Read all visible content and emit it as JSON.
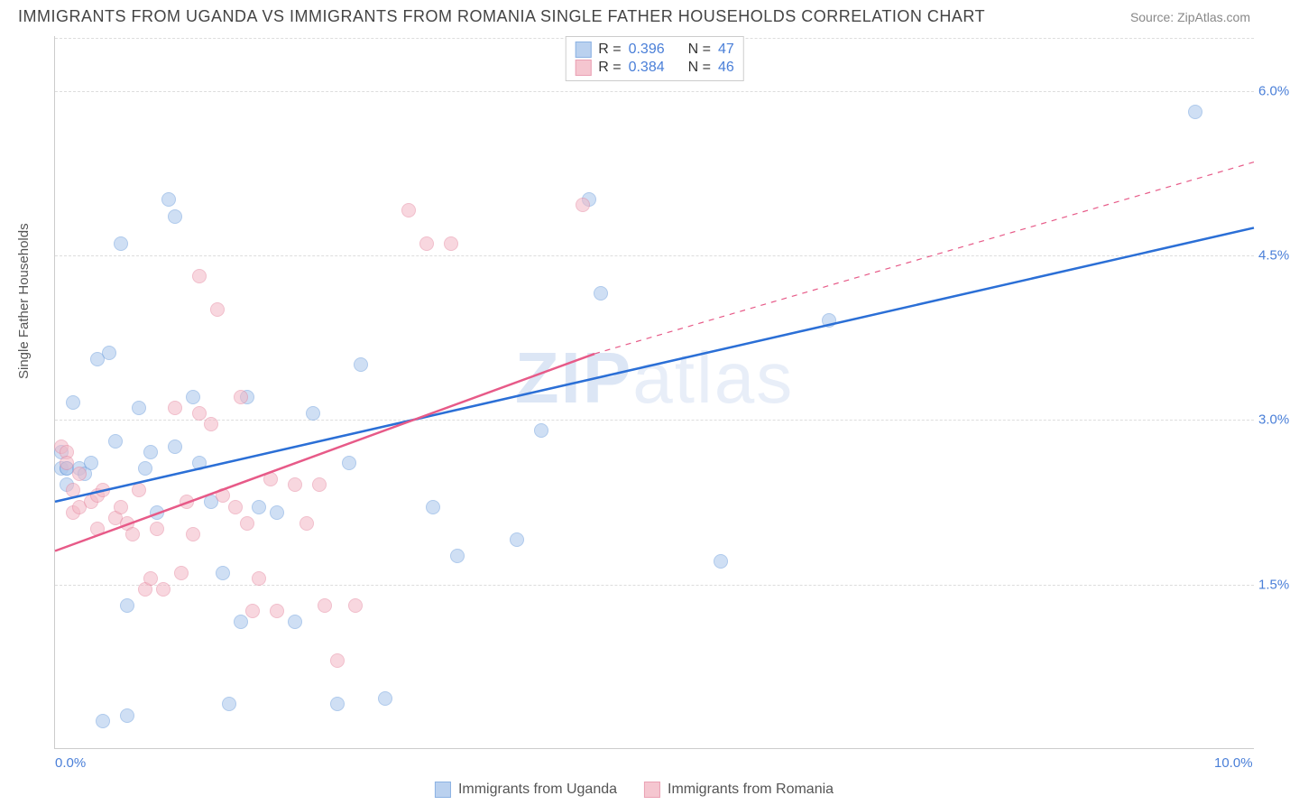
{
  "header": {
    "title": "IMMIGRANTS FROM UGANDA VS IMMIGRANTS FROM ROMANIA SINGLE FATHER HOUSEHOLDS CORRELATION CHART",
    "source": "Source: ZipAtlas.com"
  },
  "watermark": "ZIPatlas",
  "chart": {
    "type": "scatter",
    "y_axis_label": "Single Father Households",
    "xlim": [
      0.0,
      10.0
    ],
    "ylim": [
      0.0,
      6.5
    ],
    "x_ticks": [
      {
        "value": 0.0,
        "label": "0.0%"
      },
      {
        "value": 10.0,
        "label": "10.0%"
      }
    ],
    "y_ticks": [
      {
        "value": 1.5,
        "label": "1.5%"
      },
      {
        "value": 3.0,
        "label": "3.0%"
      },
      {
        "value": 4.5,
        "label": "4.5%"
      },
      {
        "value": 6.0,
        "label": "6.0%"
      }
    ],
    "background_color": "#ffffff",
    "grid_color": "#dddddd",
    "point_radius": 8,
    "series": [
      {
        "name": "Immigrants from Uganda",
        "fill_color": "#a9c6ec",
        "fill_opacity": 0.55,
        "stroke_color": "#6f9fdd",
        "trend_color": "#2b6fd6",
        "trend_width": 2.5,
        "R": "0.396",
        "N": "47",
        "trend": {
          "x1": 0.0,
          "y1": 2.25,
          "x2": 10.0,
          "y2": 4.75,
          "dashed": false
        },
        "points": [
          [
            0.05,
            2.7
          ],
          [
            0.05,
            2.55
          ],
          [
            0.1,
            2.55
          ],
          [
            0.1,
            2.4
          ],
          [
            0.1,
            2.55
          ],
          [
            0.15,
            3.15
          ],
          [
            0.2,
            2.55
          ],
          [
            0.25,
            2.5
          ],
          [
            0.3,
            2.6
          ],
          [
            0.35,
            3.55
          ],
          [
            0.4,
            0.25
          ],
          [
            0.45,
            3.6
          ],
          [
            0.5,
            2.8
          ],
          [
            0.55,
            4.6
          ],
          [
            0.6,
            1.3
          ],
          [
            0.6,
            0.3
          ],
          [
            0.7,
            3.1
          ],
          [
            0.75,
            2.55
          ],
          [
            0.8,
            2.7
          ],
          [
            0.85,
            2.15
          ],
          [
            0.95,
            5.0
          ],
          [
            1.0,
            4.85
          ],
          [
            1.0,
            2.75
          ],
          [
            1.15,
            3.2
          ],
          [
            1.2,
            2.6
          ],
          [
            1.3,
            2.25
          ],
          [
            1.4,
            1.6
          ],
          [
            1.45,
            0.4
          ],
          [
            1.55,
            1.15
          ],
          [
            1.6,
            3.2
          ],
          [
            1.7,
            2.2
          ],
          [
            1.85,
            2.15
          ],
          [
            2.0,
            1.15
          ],
          [
            2.15,
            3.05
          ],
          [
            2.35,
            0.4
          ],
          [
            2.45,
            2.6
          ],
          [
            2.55,
            3.5
          ],
          [
            2.75,
            0.45
          ],
          [
            3.15,
            2.2
          ],
          [
            3.35,
            1.75
          ],
          [
            3.85,
            1.9
          ],
          [
            4.05,
            2.9
          ],
          [
            4.45,
            5.0
          ],
          [
            4.55,
            4.15
          ],
          [
            5.55,
            1.7
          ],
          [
            6.45,
            3.9
          ],
          [
            9.5,
            5.8
          ]
        ]
      },
      {
        "name": "Immigrants from Romania",
        "fill_color": "#f3b8c5",
        "fill_opacity": 0.55,
        "stroke_color": "#e68aa2",
        "trend_color": "#e75a88",
        "trend_width": 2.5,
        "R": "0.384",
        "N": "46",
        "trend": {
          "x1": 0.0,
          "y1": 1.8,
          "x2": 4.5,
          "y2": 3.6,
          "dashed_from_x": 4.5,
          "x2d": 10.0,
          "y2d": 5.35
        },
        "points": [
          [
            0.05,
            2.75
          ],
          [
            0.1,
            2.7
          ],
          [
            0.1,
            2.6
          ],
          [
            0.15,
            2.35
          ],
          [
            0.15,
            2.15
          ],
          [
            0.2,
            2.2
          ],
          [
            0.2,
            2.5
          ],
          [
            0.3,
            2.25
          ],
          [
            0.35,
            2.0
          ],
          [
            0.35,
            2.3
          ],
          [
            0.4,
            2.35
          ],
          [
            0.5,
            2.1
          ],
          [
            0.55,
            2.2
          ],
          [
            0.6,
            2.05
          ],
          [
            0.65,
            1.95
          ],
          [
            0.7,
            2.35
          ],
          [
            0.75,
            1.45
          ],
          [
            0.8,
            1.55
          ],
          [
            0.85,
            2.0
          ],
          [
            0.9,
            1.45
          ],
          [
            1.0,
            3.1
          ],
          [
            1.05,
            1.6
          ],
          [
            1.1,
            2.25
          ],
          [
            1.15,
            1.95
          ],
          [
            1.2,
            3.05
          ],
          [
            1.2,
            4.3
          ],
          [
            1.3,
            2.95
          ],
          [
            1.35,
            4.0
          ],
          [
            1.4,
            2.3
          ],
          [
            1.5,
            2.2
          ],
          [
            1.55,
            3.2
          ],
          [
            1.6,
            2.05
          ],
          [
            1.65,
            1.25
          ],
          [
            1.7,
            1.55
          ],
          [
            1.8,
            2.45
          ],
          [
            1.85,
            1.25
          ],
          [
            2.0,
            2.4
          ],
          [
            2.1,
            2.05
          ],
          [
            2.2,
            2.4
          ],
          [
            2.25,
            1.3
          ],
          [
            2.35,
            0.8
          ],
          [
            2.5,
            1.3
          ],
          [
            2.95,
            4.9
          ],
          [
            3.1,
            4.6
          ],
          [
            3.3,
            4.6
          ],
          [
            4.4,
            4.95
          ]
        ]
      }
    ]
  },
  "legend_top": {
    "r_label": "R =",
    "n_label": "N ="
  }
}
